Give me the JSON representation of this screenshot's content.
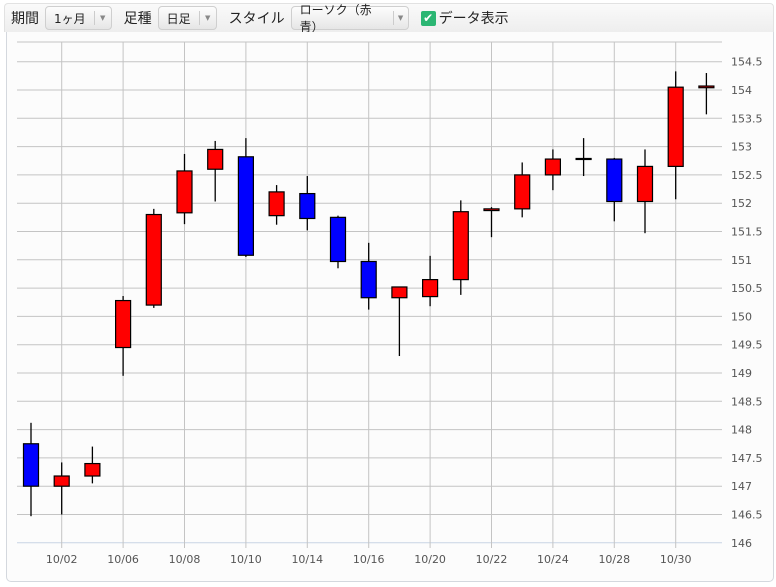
{
  "toolbar": {
    "period_label": "期間",
    "period_value": "1ヶ月",
    "bar_label": "足種",
    "bar_value": "日足",
    "style_label": "スタイル",
    "style_value": "ローソク（赤青）",
    "data_display_label": "データ表示",
    "data_display_checked": true
  },
  "chart_data": {
    "type": "candlestick",
    "up_color": "#ff0000",
    "down_color": "#0000ff",
    "ylim": [
      146,
      154.5
    ],
    "yticks": [
      "146",
      "146.5",
      "147",
      "147.5",
      "148",
      "148.5",
      "149",
      "149.5",
      "150",
      "150.5",
      "151",
      "151.5",
      "152",
      "152.5",
      "153",
      "153.5",
      "154",
      "154.5"
    ],
    "xtick_labels": [
      "10/02",
      "10/06",
      "10/08",
      "10/10",
      "10/14",
      "10/16",
      "10/20",
      "10/22",
      "10/24",
      "10/28",
      "10/30"
    ],
    "grid": true,
    "candles": [
      {
        "date": "10/01",
        "open": 147.75,
        "high": 148.12,
        "low": 146.47,
        "close": 147.0
      },
      {
        "date": "10/02",
        "open": 147.0,
        "high": 147.42,
        "low": 146.5,
        "close": 147.18
      },
      {
        "date": "10/03",
        "open": 147.18,
        "high": 147.7,
        "low": 147.05,
        "close": 147.4
      },
      {
        "date": "10/06",
        "open": 149.45,
        "high": 150.36,
        "low": 148.95,
        "close": 150.28
      },
      {
        "date": "10/07",
        "open": 150.2,
        "high": 151.9,
        "low": 150.15,
        "close": 151.8
      },
      {
        "date": "10/08",
        "open": 151.83,
        "high": 152.87,
        "low": 151.63,
        "close": 152.57
      },
      {
        "date": "10/09",
        "open": 152.6,
        "high": 153.1,
        "low": 152.03,
        "close": 152.95
      },
      {
        "date": "10/10",
        "open": 152.82,
        "high": 153.15,
        "low": 151.05,
        "close": 151.08
      },
      {
        "date": "10/13",
        "open": 151.78,
        "high": 152.32,
        "low": 151.62,
        "close": 152.2
      },
      {
        "date": "10/14",
        "open": 152.17,
        "high": 152.48,
        "low": 151.52,
        "close": 151.73
      },
      {
        "date": "10/15",
        "open": 151.75,
        "high": 151.78,
        "low": 150.85,
        "close": 150.97
      },
      {
        "date": "10/16",
        "open": 150.97,
        "high": 151.3,
        "low": 150.12,
        "close": 150.33
      },
      {
        "date": "10/17",
        "open": 150.33,
        "high": 150.52,
        "low": 149.3,
        "close": 150.52
      },
      {
        "date": "10/20",
        "open": 150.35,
        "high": 151.07,
        "low": 150.18,
        "close": 150.65
      },
      {
        "date": "10/21",
        "open": 150.65,
        "high": 152.05,
        "low": 150.38,
        "close": 151.85
      },
      {
        "date": "10/22",
        "open": 151.87,
        "high": 151.93,
        "low": 151.4,
        "close": 151.9
      },
      {
        "date": "10/23",
        "open": 151.9,
        "high": 152.72,
        "low": 151.75,
        "close": 152.5
      },
      {
        "date": "10/24",
        "open": 152.5,
        "high": 152.95,
        "low": 152.23,
        "close": 152.78
      },
      {
        "date": "10/27",
        "open": 152.78,
        "high": 153.15,
        "low": 152.48,
        "close": 152.79
      },
      {
        "date": "10/28",
        "open": 152.78,
        "high": 152.8,
        "low": 151.68,
        "close": 152.03
      },
      {
        "date": "10/29",
        "open": 152.03,
        "high": 152.95,
        "low": 151.47,
        "close": 152.65
      },
      {
        "date": "10/30",
        "open": 152.65,
        "high": 154.33,
        "low": 152.07,
        "close": 154.05
      },
      {
        "date": "10/31",
        "open": 154.04,
        "high": 154.3,
        "low": 153.57,
        "close": 154.07
      }
    ]
  }
}
